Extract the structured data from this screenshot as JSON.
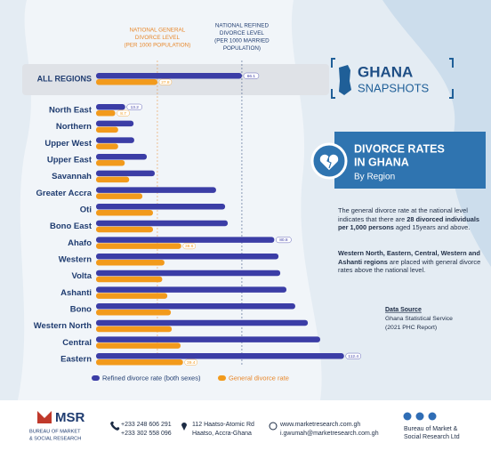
{
  "header": {
    "logo_title": "GHANA",
    "logo_subtitle": "SNAPSHOTS"
  },
  "chart_data": {
    "type": "bar",
    "orientation": "horizontal",
    "title": [
      "DIVORCE RATES",
      "IN GHANA"
    ],
    "subtitle": "By Region",
    "categories": [
      "ALL REGIONS",
      "North East",
      "Northern",
      "Upper West",
      "Upper East",
      "Savannah",
      "Greater Accra",
      "Oti",
      "Bono East",
      "Ahafo",
      "Western",
      "Volta",
      "Ashanti",
      "Bono",
      "Western North",
      "Central",
      "Eastern"
    ],
    "series": [
      {
        "name": "Refined divorce rate (both sexes)",
        "color": "#3b3da6",
        "values": [
          66.1,
          13.2,
          17,
          17.3,
          23,
          26.6,
          54.4,
          58.5,
          59.7,
          80.8,
          82.7,
          83.5,
          86.3,
          90.3,
          96,
          101.6,
          112.4
        ],
        "value_labels": [
          "66.1",
          "13.2",
          null,
          null,
          null,
          null,
          null,
          null,
          null,
          "80.8",
          null,
          null,
          null,
          null,
          null,
          null,
          "112.4"
        ]
      },
      {
        "name": "General divorce rate",
        "color": "#f29a1c",
        "values": [
          27.8,
          8.7,
          10,
          10,
          13,
          15,
          21,
          25.8,
          25.8,
          38.6,
          31,
          30,
          32.3,
          33.9,
          34.3,
          38.3,
          39.4
        ],
        "value_labels": [
          "27.8",
          "8.7",
          null,
          null,
          null,
          null,
          null,
          null,
          null,
          "38.6",
          null,
          null,
          null,
          null,
          null,
          null,
          "39.4"
        ]
      }
    ],
    "xlim": [
      0,
      120
    ],
    "annotations": [
      {
        "lines": [
          "NATIONAL GENERAL",
          "DIVORCE LEVEL",
          "(PER 1000 POPULATION)"
        ],
        "color": "#e8872a"
      },
      {
        "lines": [
          "NATIONAL REFINED",
          "DIVORCE LEVEL",
          "(PER 1000 MARRIED",
          "POPULATION)"
        ],
        "color": "#1f3c70"
      }
    ]
  },
  "paragraphs": [
    [
      {
        "text": "The general divorce rate at the national level indicates that there are ",
        "bold": false
      },
      {
        "text": "28 divorced individuals per 1,000 persons",
        "bold": true
      },
      {
        "text": " aged 15years and above.",
        "bold": false
      }
    ],
    [
      {
        "text": "Western North, Eastern, Central, Western and Ashanti regions",
        "bold": true
      },
      {
        "text": " are placed with general divorce rates above the national level.",
        "bold": false
      }
    ]
  ],
  "source": {
    "heading": "Data Source",
    "lines": [
      "Ghana Statistical Service",
      "(2021 PHC Report)"
    ]
  },
  "footer": {
    "org_short": "MSR",
    "org_lines": [
      "BUREAU OF MARKET",
      "& SOCIAL RESEARCH"
    ],
    "phones": [
      "+233 248 606 291",
      "+233 302 558 096"
    ],
    "address": [
      "112 Haatso-Atomic Rd",
      "Haatso, Accra-Ghana"
    ],
    "web": [
      "www.marketresearch.com.gh",
      "i.gwumah@marketresearch.com.gh"
    ],
    "social": [
      "Bureau of Market &",
      "Social Research Ltd"
    ]
  }
}
